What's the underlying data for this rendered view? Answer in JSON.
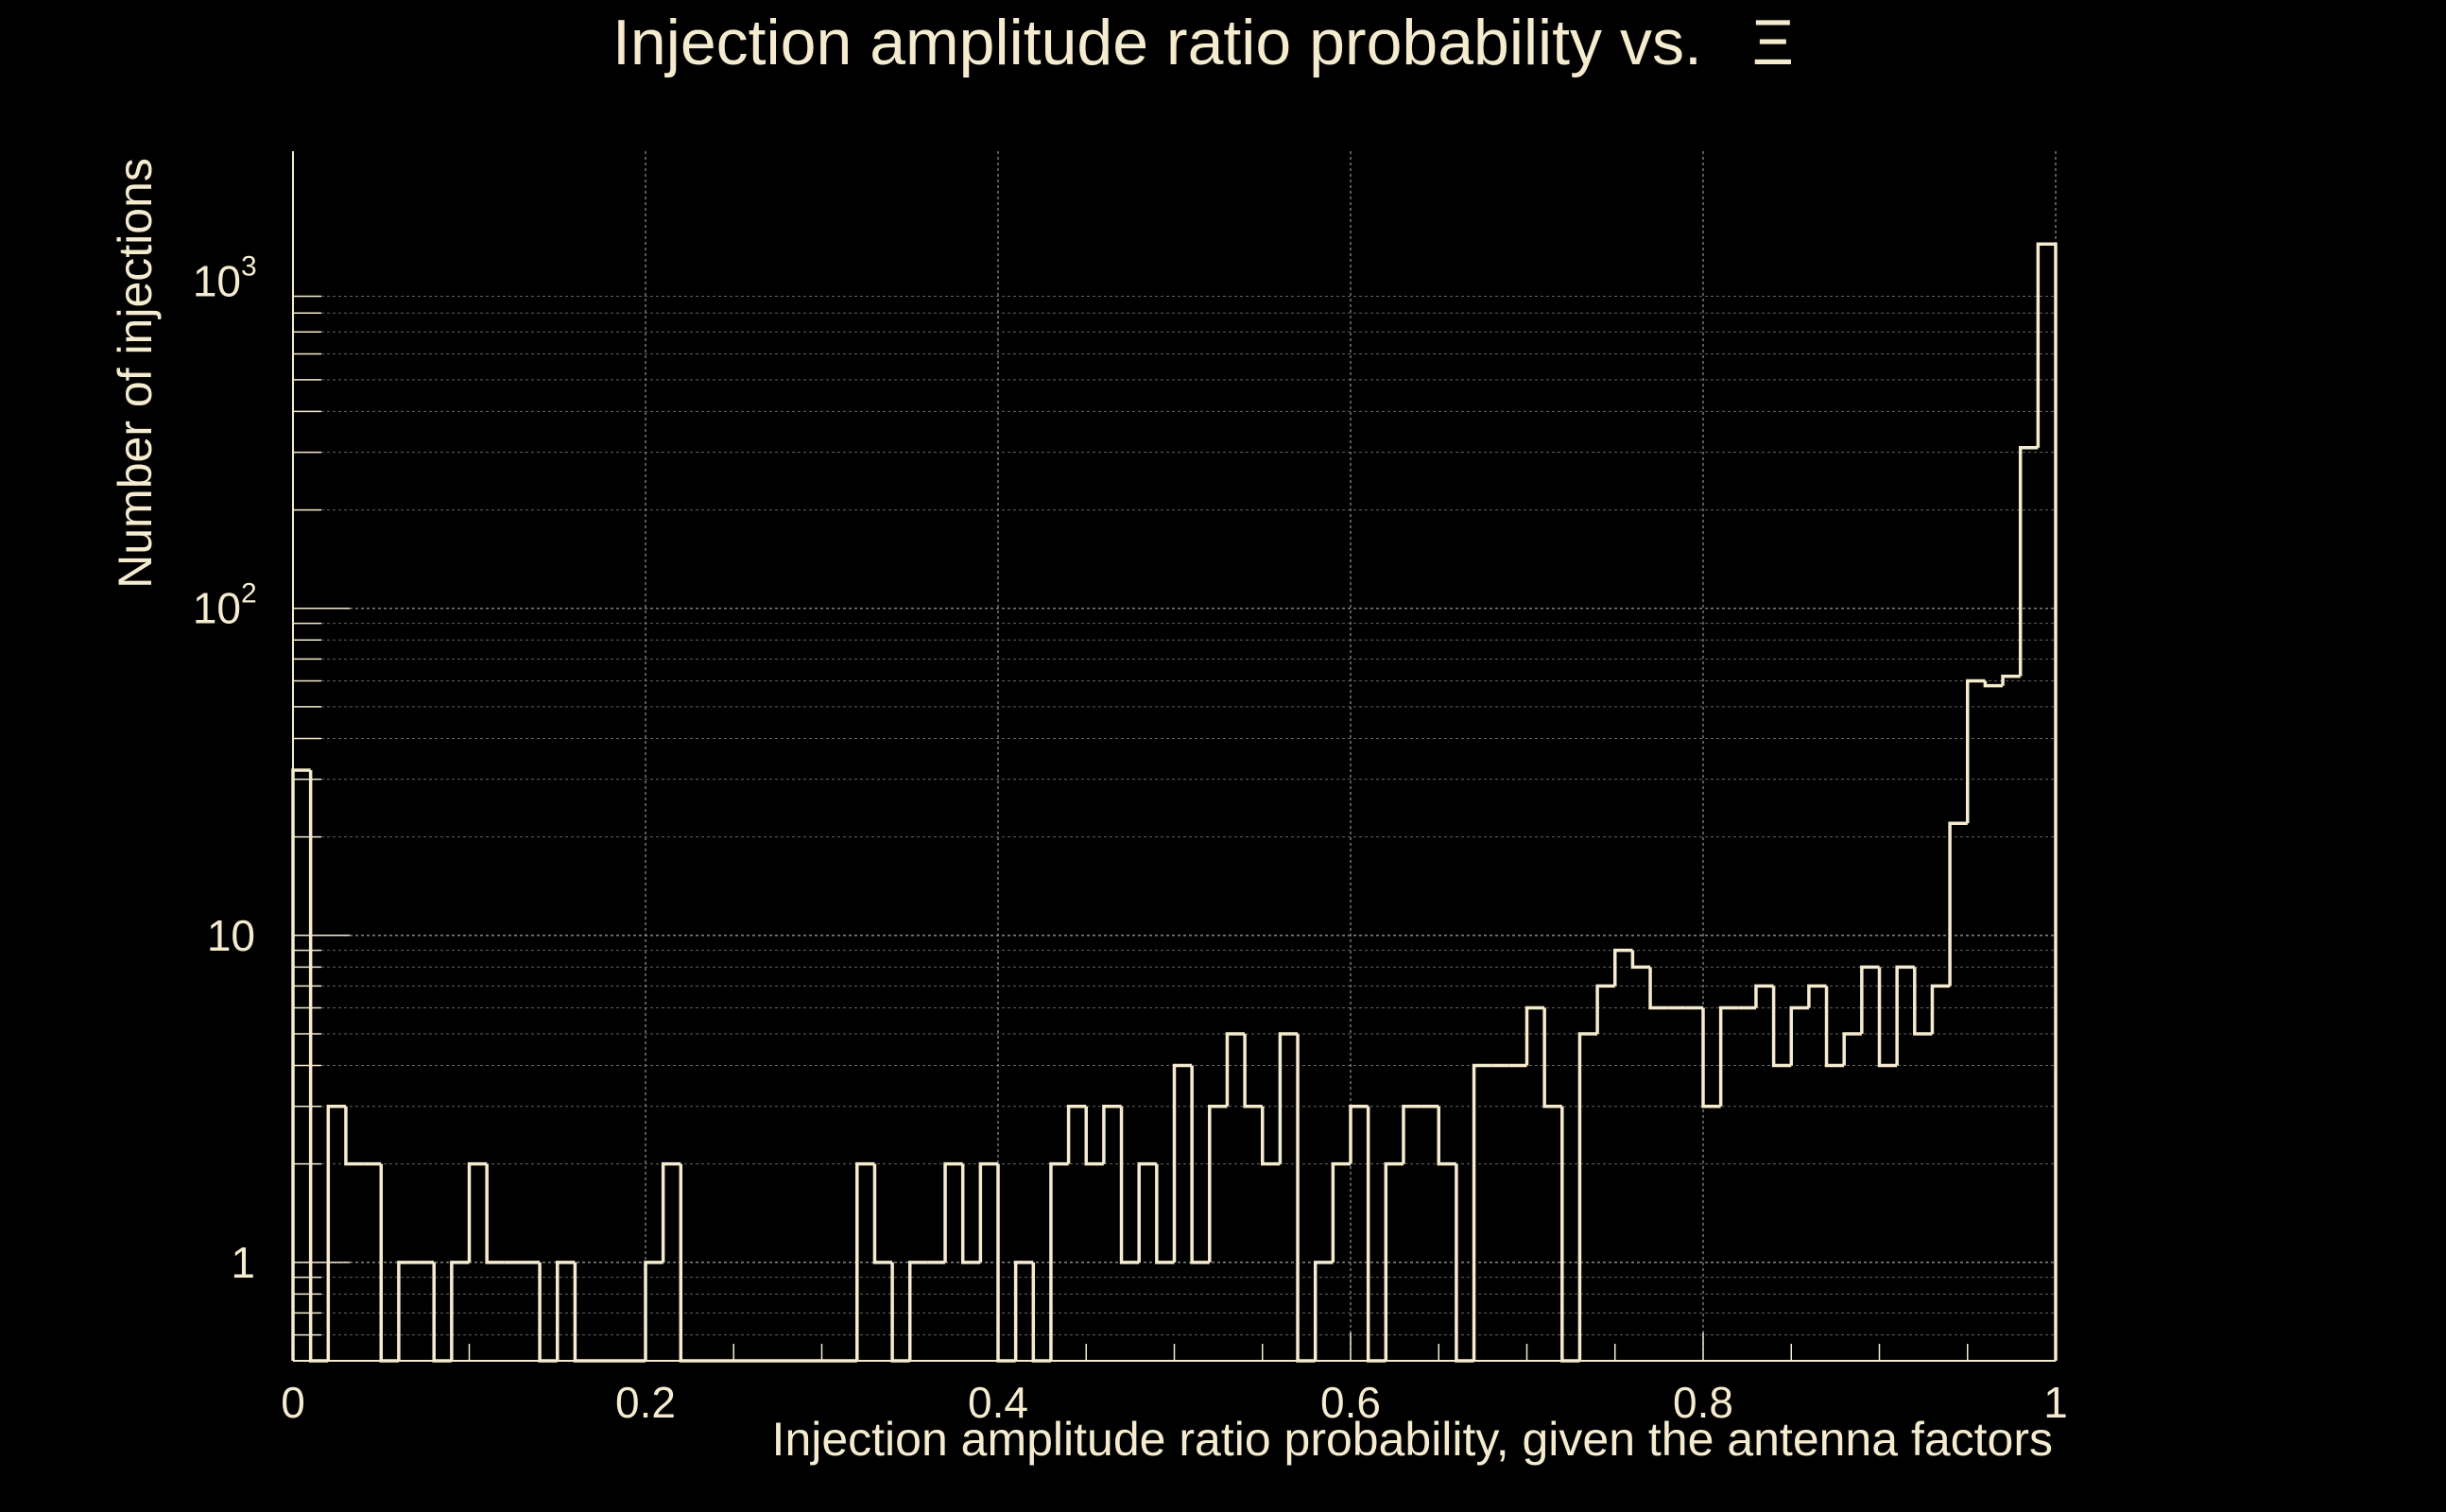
{
  "chart_data": {
    "type": "histogram",
    "title": "Injection amplitude ratio probability vs.",
    "title_symbol": "Ξ",
    "xlabel": "Injection amplitude ratio probability, given the antenna factors",
    "ylabel": "Number of injections",
    "xlim": [
      0,
      1
    ],
    "ylim": [
      0.5,
      2500
    ],
    "yscale": "log",
    "grid": true,
    "colors": {
      "background": "#000000",
      "foreground": "#f5ecd0",
      "grid": "#8c8c8c"
    },
    "x_ticks": [
      {
        "value": 0,
        "label": "0"
      },
      {
        "value": 0.2,
        "label": "0.2"
      },
      {
        "value": 0.4,
        "label": "0.4"
      },
      {
        "value": 0.6,
        "label": "0.6"
      },
      {
        "value": 0.8,
        "label": "0.8"
      },
      {
        "value": 1,
        "label": "1"
      }
    ],
    "y_ticks": [
      {
        "value": 1,
        "label": "1",
        "sup": ""
      },
      {
        "value": 10,
        "label": "10",
        "sup": ""
      },
      {
        "value": 100,
        "label": "10",
        "sup": "2"
      },
      {
        "value": 1000,
        "label": "10",
        "sup": "3"
      }
    ],
    "bin_width": 0.01,
    "counts": [
      32,
      0,
      3,
      2,
      2,
      0,
      1,
      1,
      0,
      1,
      2,
      1,
      1,
      1,
      0,
      1,
      0,
      0,
      0,
      0,
      1,
      2,
      0,
      0,
      0,
      0,
      0,
      0,
      0,
      0,
      0,
      0,
      2,
      1,
      0,
      1,
      1,
      2,
      1,
      2,
      0,
      1,
      0,
      2,
      3,
      2,
      3,
      1,
      2,
      1,
      4,
      1,
      3,
      5,
      3,
      2,
      5,
      0,
      1,
      2,
      3,
      0,
      2,
      3,
      3,
      2,
      0,
      4,
      4,
      4,
      6,
      3,
      0,
      5,
      7,
      9,
      8,
      6,
      6,
      6,
      3,
      6,
      6,
      7,
      4,
      6,
      7,
      4,
      5,
      8,
      4,
      8,
      5,
      7,
      22,
      60,
      58,
      62,
      310,
      1300
    ]
  }
}
